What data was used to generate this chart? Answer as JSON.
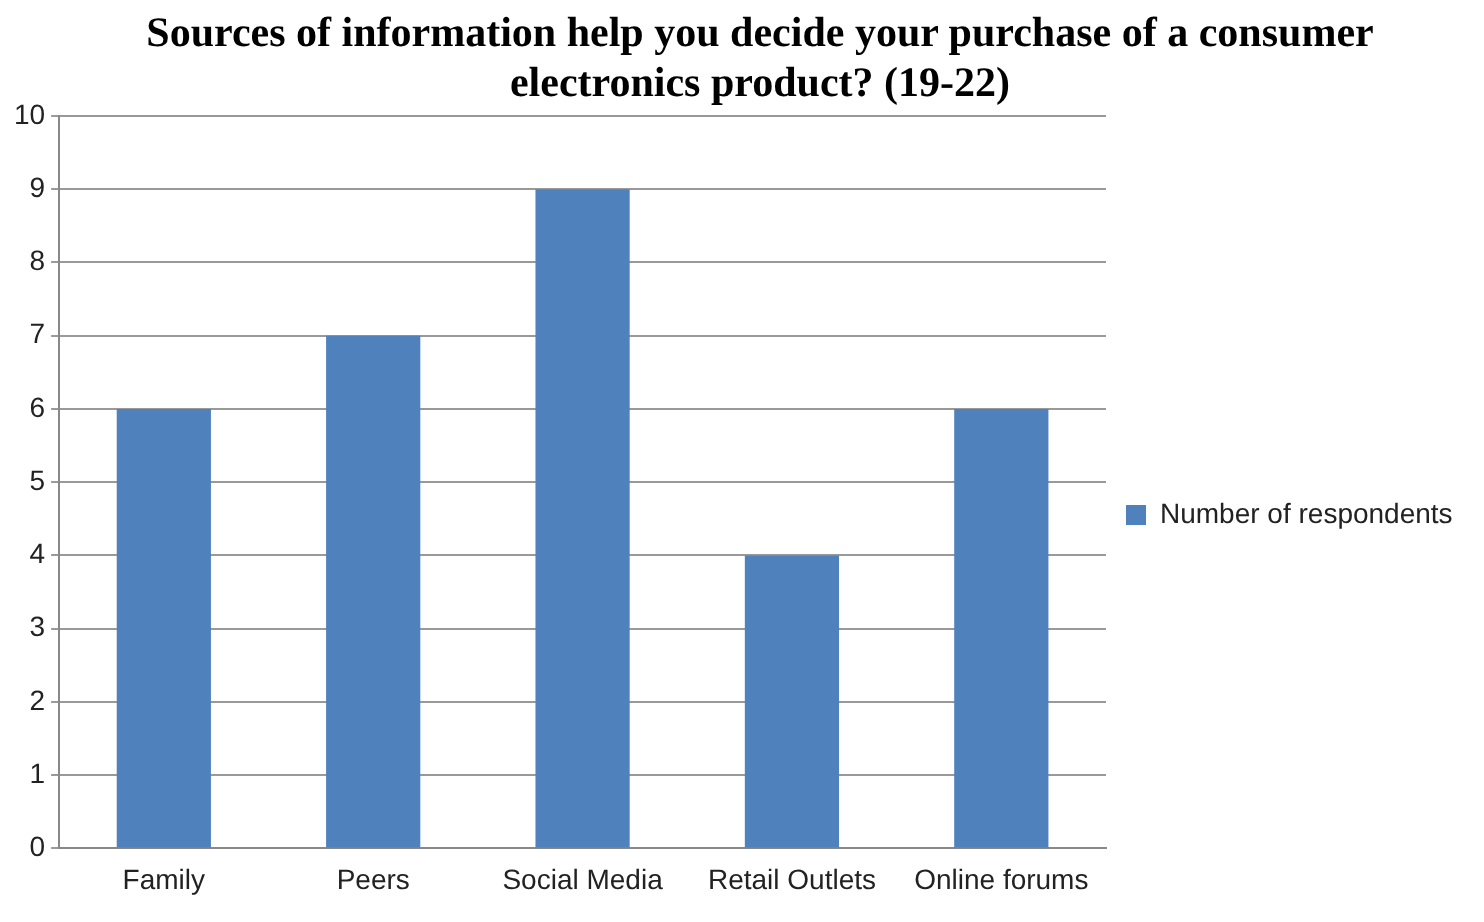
{
  "chart_data": {
    "type": "bar",
    "title": "Sources of information help you decide your purchase of a consumer electronics product? (19-22)",
    "categories": [
      "Family",
      "Peers",
      "Social Media",
      "Retail Outlets",
      "Online forums"
    ],
    "series": [
      {
        "name": "Number of respondents",
        "color": "#4f81bd",
        "values": [
          6,
          7,
          9,
          4,
          6
        ]
      }
    ],
    "ylim": [
      0,
      10
    ],
    "yticks": [
      0,
      1,
      2,
      3,
      4,
      5,
      6,
      7,
      8,
      9,
      10
    ],
    "grid": "y",
    "legend": "right"
  }
}
